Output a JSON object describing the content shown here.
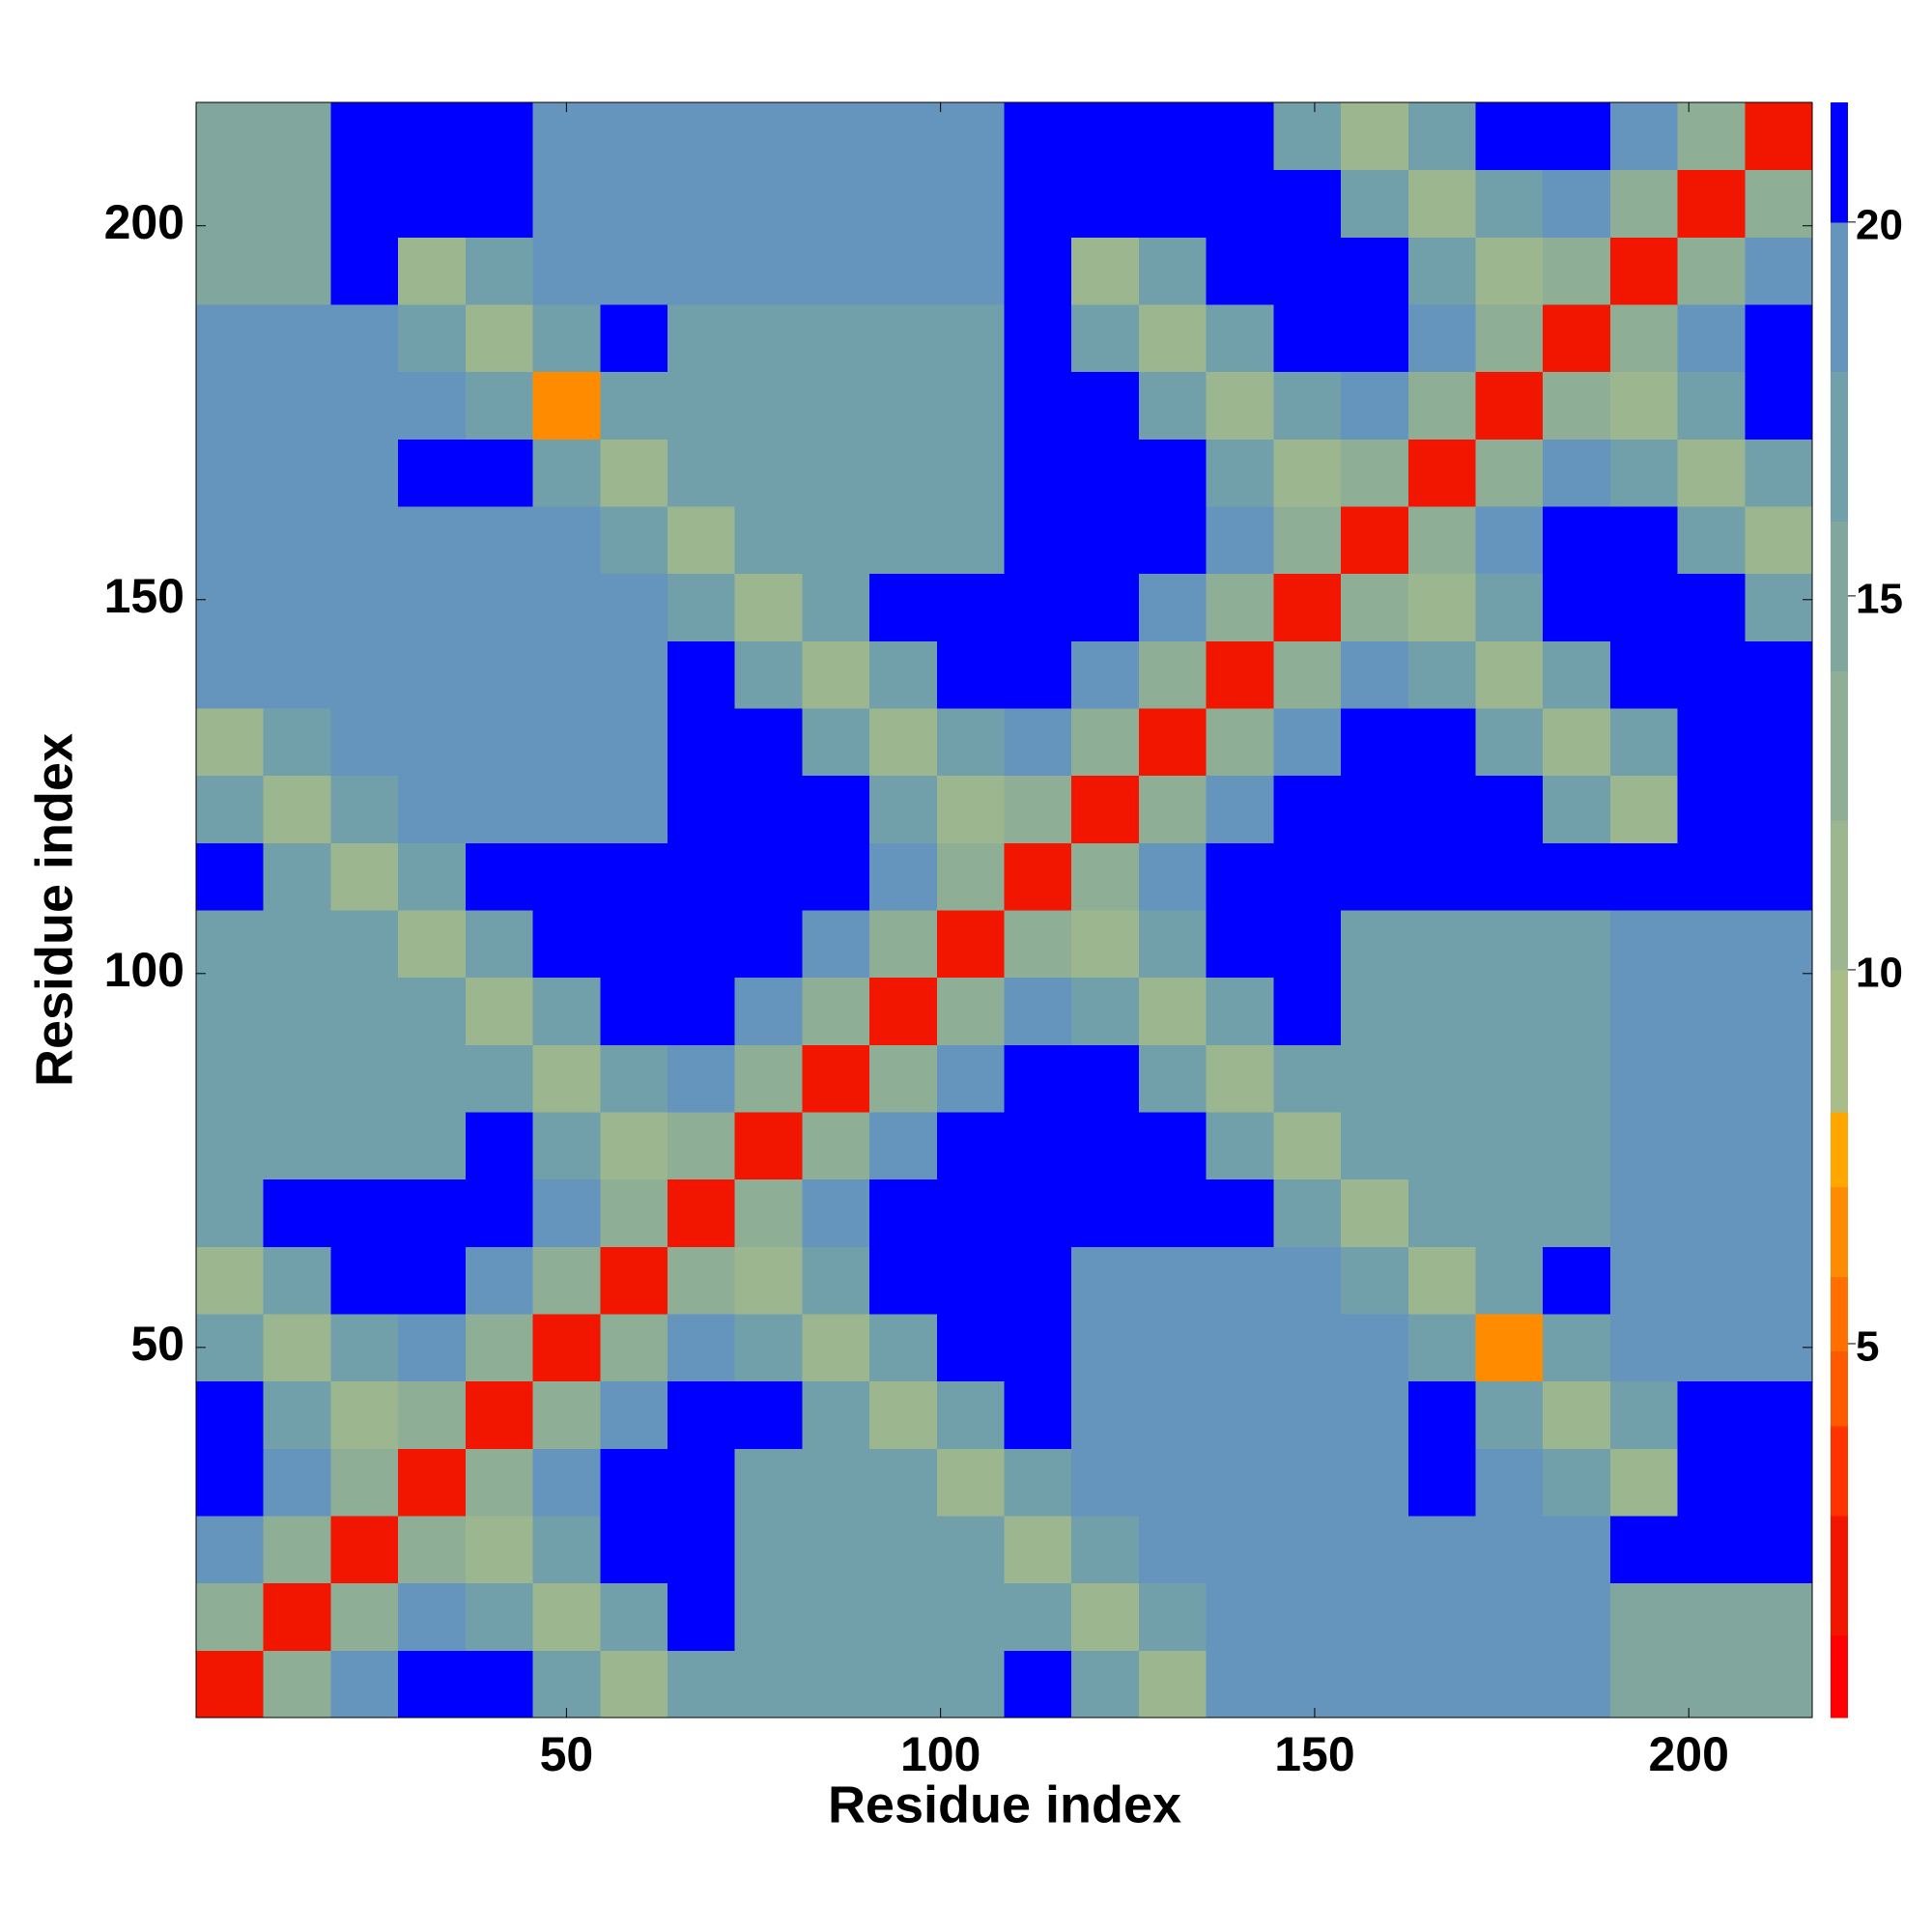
{
  "chart_data": {
    "type": "heatmap",
    "xlabel": "Residue index",
    "ylabel": "Residue index",
    "xlim": [
      0.5,
      216.5
    ],
    "ylim": [
      0.5,
      216.5
    ],
    "xticks": [
      50,
      100,
      150,
      200
    ],
    "yticks": [
      50,
      100,
      150,
      200
    ],
    "x": [
      5,
      14,
      23,
      32,
      41,
      50,
      59,
      68,
      77,
      86,
      95,
      104,
      113,
      122,
      131,
      140,
      149,
      158,
      167,
      176,
      185,
      194,
      203,
      212
    ],
    "y": [
      5,
      14,
      23,
      32,
      41,
      50,
      59,
      68,
      77,
      86,
      95,
      104,
      113,
      122,
      131,
      140,
      149,
      158,
      167,
      176,
      185,
      194,
      203,
      212
    ],
    "z": [
      [
        2,
        13,
        19,
        21,
        21,
        16,
        10,
        16,
        17,
        17,
        17,
        17,
        21,
        16,
        10,
        18,
        18,
        18,
        18,
        18,
        18,
        15,
        15,
        15
      ],
      [
        13,
        2,
        13,
        19,
        16,
        10,
        16,
        21,
        17,
        17,
        17,
        17,
        16,
        10,
        16,
        18,
        18,
        18,
        18,
        18,
        18,
        15,
        15,
        15
      ],
      [
        19,
        13,
        2,
        13,
        10,
        16,
        21,
        21,
        17,
        17,
        17,
        16,
        10,
        16,
        18,
        18,
        18,
        18,
        18,
        18,
        18,
        21,
        21,
        21
      ],
      [
        21,
        19,
        13,
        2,
        13,
        19,
        21,
        21,
        17,
        17,
        16,
        10,
        16,
        18,
        18,
        18,
        18,
        18,
        21,
        18,
        16,
        10,
        21,
        21
      ],
      [
        21,
        16,
        10,
        13,
        2,
        13,
        19,
        21,
        21,
        16,
        10,
        16,
        21,
        18,
        18,
        18,
        18,
        18,
        21,
        16,
        10,
        16,
        21,
        21
      ],
      [
        16,
        10,
        16,
        19,
        13,
        2,
        13,
        19,
        16,
        10,
        16,
        21,
        21,
        18,
        18,
        18,
        18,
        18,
        16,
        7,
        16,
        18,
        18,
        18
      ],
      [
        10,
        16,
        21,
        21,
        19,
        13,
        2,
        13,
        10,
        16,
        21,
        21,
        21,
        18,
        18,
        18,
        18,
        16,
        10,
        16,
        21,
        18,
        18,
        18
      ],
      [
        16,
        21,
        21,
        21,
        21,
        19,
        13,
        2,
        13,
        19,
        21,
        21,
        21,
        21,
        21,
        21,
        16,
        10,
        16,
        17,
        17,
        18,
        18,
        18
      ],
      [
        17,
        17,
        17,
        17,
        21,
        16,
        10,
        13,
        2,
        13,
        19,
        21,
        21,
        21,
        21,
        16,
        10,
        16,
        17,
        17,
        17,
        18,
        18,
        18
      ],
      [
        17,
        17,
        17,
        17,
        16,
        10,
        16,
        19,
        13,
        2,
        13,
        19,
        21,
        21,
        16,
        10,
        16,
        17,
        17,
        17,
        17,
        18,
        18,
        18
      ],
      [
        17,
        17,
        17,
        16,
        10,
        16,
        21,
        21,
        19,
        13,
        2,
        13,
        19,
        16,
        10,
        16,
        21,
        17,
        17,
        17,
        17,
        18,
        18,
        18
      ],
      [
        17,
        17,
        16,
        10,
        16,
        21,
        21,
        21,
        21,
        19,
        13,
        2,
        13,
        10,
        16,
        21,
        21,
        17,
        17,
        17,
        17,
        18,
        18,
        18
      ],
      [
        21,
        16,
        10,
        16,
        21,
        21,
        21,
        21,
        21,
        21,
        19,
        13,
        2,
        13,
        19,
        21,
        21,
        21,
        21,
        21,
        21,
        21,
        21,
        21
      ],
      [
        16,
        10,
        16,
        18,
        18,
        18,
        18,
        21,
        21,
        21,
        16,
        10,
        13,
        2,
        13,
        19,
        21,
        21,
        21,
        21,
        16,
        10,
        21,
        21
      ],
      [
        10,
        16,
        18,
        18,
        18,
        18,
        18,
        21,
        21,
        16,
        10,
        16,
        19,
        13,
        2,
        13,
        19,
        21,
        21,
        16,
        10,
        16,
        21,
        21
      ],
      [
        18,
        18,
        18,
        18,
        18,
        18,
        18,
        21,
        16,
        10,
        16,
        21,
        21,
        19,
        13,
        2,
        13,
        19,
        16,
        10,
        16,
        21,
        21,
        21
      ],
      [
        18,
        18,
        18,
        18,
        18,
        18,
        18,
        16,
        10,
        16,
        21,
        21,
        21,
        21,
        19,
        13,
        2,
        13,
        10,
        16,
        21,
        21,
        21,
        16
      ],
      [
        18,
        18,
        18,
        18,
        18,
        18,
        16,
        10,
        16,
        17,
        17,
        17,
        21,
        21,
        21,
        19,
        13,
        2,
        13,
        19,
        21,
        21,
        16,
        10
      ],
      [
        18,
        18,
        18,
        21,
        21,
        16,
        10,
        16,
        17,
        17,
        17,
        17,
        21,
        21,
        21,
        16,
        10,
        13,
        2,
        13,
        19,
        16,
        10,
        16
      ],
      [
        18,
        18,
        18,
        18,
        16,
        7,
        16,
        17,
        17,
        17,
        17,
        17,
        21,
        21,
        16,
        10,
        16,
        19,
        13,
        2,
        13,
        10,
        16,
        21
      ],
      [
        18,
        18,
        18,
        16,
        10,
        16,
        21,
        17,
        17,
        17,
        17,
        17,
        21,
        16,
        10,
        16,
        21,
        21,
        19,
        13,
        2,
        13,
        19,
        21
      ],
      [
        15,
        15,
        21,
        10,
        16,
        18,
        18,
        18,
        18,
        18,
        18,
        18,
        21,
        10,
        16,
        21,
        21,
        21,
        16,
        10,
        13,
        2,
        13,
        19
      ],
      [
        15,
        15,
        21,
        21,
        21,
        18,
        18,
        18,
        18,
        18,
        18,
        18,
        21,
        21,
        21,
        21,
        21,
        16,
        10,
        16,
        19,
        13,
        2,
        13
      ],
      [
        15,
        15,
        21,
        21,
        21,
        18,
        18,
        18,
        18,
        18,
        18,
        18,
        21,
        21,
        21,
        21,
        16,
        10,
        16,
        21,
        21,
        19,
        13,
        2
      ]
    ],
    "colorbar": {
      "lim": [
        0,
        21.6
      ],
      "ticks": [
        5,
        10,
        15,
        20
      ],
      "bounds": [
        0,
        1.1,
        2.7,
        3.9,
        4.9,
        5.9,
        7.1,
        8.1,
        10,
        12,
        14,
        16,
        18,
        20,
        21.6
      ],
      "colors": [
        "#ff0000",
        "#f21500",
        "#ff3300",
        "#ff5a00",
        "#ff7000",
        "#ff8c00",
        "#ffa600",
        "#a9bd88",
        "#9cb68f",
        "#8eae96",
        "#80a69e",
        "#72a0aa",
        "#6594bd",
        "#0000ff"
      ]
    }
  }
}
